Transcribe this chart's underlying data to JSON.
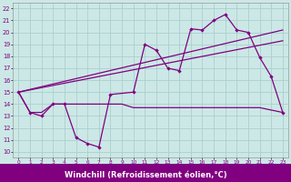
{
  "bg_color": "#cce8e6",
  "grid_color": "#aacfcd",
  "line_color": "#800080",
  "xlabel": "Windchill (Refroidissement éolien,°C)",
  "xlabel_bg": "#800080",
  "xlabel_fg": "#ffffff",
  "ylabel_ticks": [
    10,
    11,
    12,
    13,
    14,
    15,
    16,
    17,
    18,
    19,
    20,
    21,
    22
  ],
  "ylim": [
    9.5,
    22.5
  ],
  "xlim": [
    -0.5,
    23.5
  ],
  "series1_x": [
    0,
    1,
    2,
    3,
    4,
    5,
    6,
    7,
    8,
    10,
    11,
    12,
    13,
    14,
    15,
    16,
    17,
    18,
    19,
    20,
    21,
    22,
    23
  ],
  "series1_y": [
    15.0,
    13.3,
    13.0,
    14.0,
    14.0,
    11.2,
    10.7,
    10.4,
    14.8,
    15.0,
    19.0,
    18.5,
    17.0,
    16.8,
    20.3,
    20.2,
    21.0,
    21.5,
    20.2,
    20.0,
    17.9,
    16.3,
    13.3
  ],
  "series2_x": [
    0,
    1,
    2,
    3,
    4,
    5,
    6,
    7,
    8,
    9,
    10,
    11,
    12,
    13,
    14,
    15,
    16,
    17,
    18,
    19,
    20,
    21,
    22,
    23
  ],
  "series2_y": [
    15.0,
    13.3,
    13.3,
    14.0,
    14.0,
    14.0,
    14.0,
    14.0,
    14.0,
    14.0,
    13.7,
    13.7,
    13.7,
    13.7,
    13.7,
    13.7,
    13.7,
    13.7,
    13.7,
    13.7,
    13.7,
    13.7,
    13.5,
    13.3
  ],
  "series3_x": [
    0,
    23
  ],
  "series3_y": [
    15.0,
    20.2
  ],
  "series4_x": [
    0,
    23
  ],
  "series4_y": [
    15.0,
    19.3
  ]
}
